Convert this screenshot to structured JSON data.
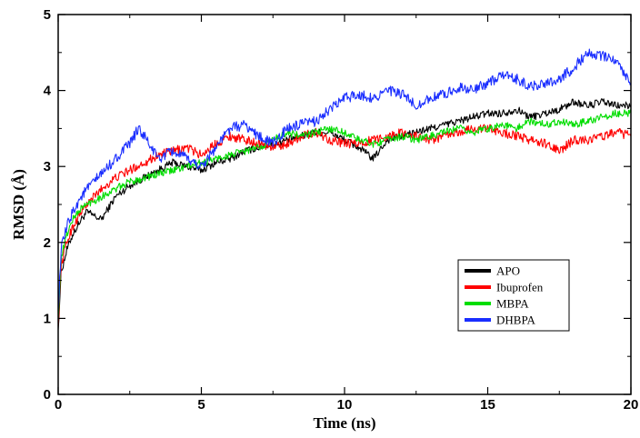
{
  "chart_data": {
    "type": "line",
    "title": "",
    "xlabel": "Time (ns)",
    "ylabel": "RMSD (Å)",
    "xlim": [
      0,
      20
    ],
    "ylim": [
      0,
      5
    ],
    "x_ticks": [
      "0",
      "5",
      "10",
      "15",
      "20"
    ],
    "y_ticks": [
      "0",
      "1",
      "2",
      "3",
      "4",
      "5"
    ],
    "grid": false,
    "legend_position": "bottom-right",
    "series": [
      {
        "name": "APO",
        "color": "#000000",
        "noise": 0.05,
        "points": [
          [
            0,
            0.85
          ],
          [
            0.1,
            1.6
          ],
          [
            0.3,
            1.9
          ],
          [
            0.5,
            2.1
          ],
          [
            0.8,
            2.3
          ],
          [
            1.0,
            2.4
          ],
          [
            1.5,
            2.3
          ],
          [
            2.0,
            2.6
          ],
          [
            2.5,
            2.75
          ],
          [
            3.0,
            2.85
          ],
          [
            3.5,
            2.95
          ],
          [
            4.0,
            3.05
          ],
          [
            4.5,
            3.0
          ],
          [
            5.0,
            2.95
          ],
          [
            5.5,
            3.05
          ],
          [
            6.0,
            3.1
          ],
          [
            6.5,
            3.2
          ],
          [
            7.0,
            3.25
          ],
          [
            7.5,
            3.3
          ],
          [
            8.0,
            3.35
          ],
          [
            8.5,
            3.4
          ],
          [
            9.0,
            3.45
          ],
          [
            9.5,
            3.45
          ],
          [
            10.0,
            3.35
          ],
          [
            10.5,
            3.25
          ],
          [
            11.0,
            3.1
          ],
          [
            11.5,
            3.35
          ],
          [
            12.0,
            3.4
          ],
          [
            12.5,
            3.45
          ],
          [
            13.0,
            3.5
          ],
          [
            13.5,
            3.55
          ],
          [
            14.0,
            3.6
          ],
          [
            14.5,
            3.65
          ],
          [
            15.0,
            3.7
          ],
          [
            15.5,
            3.7
          ],
          [
            16.0,
            3.75
          ],
          [
            16.5,
            3.65
          ],
          [
            17.0,
            3.7
          ],
          [
            17.5,
            3.75
          ],
          [
            18.0,
            3.85
          ],
          [
            18.5,
            3.8
          ],
          [
            19.0,
            3.85
          ],
          [
            19.5,
            3.8
          ],
          [
            20.0,
            3.8
          ]
        ]
      },
      {
        "name": "Ibuprofen",
        "color": "#ff0000",
        "noise": 0.06,
        "points": [
          [
            0,
            0.9
          ],
          [
            0.1,
            1.7
          ],
          [
            0.3,
            2.0
          ],
          [
            0.5,
            2.2
          ],
          [
            0.8,
            2.4
          ],
          [
            1.0,
            2.5
          ],
          [
            1.5,
            2.7
          ],
          [
            2.0,
            2.85
          ],
          [
            2.5,
            2.95
          ],
          [
            3.0,
            3.05
          ],
          [
            3.5,
            3.15
          ],
          [
            4.0,
            3.2
          ],
          [
            4.5,
            3.25
          ],
          [
            5.0,
            3.15
          ],
          [
            5.5,
            3.3
          ],
          [
            6.0,
            3.4
          ],
          [
            6.5,
            3.35
          ],
          [
            7.0,
            3.3
          ],
          [
            7.5,
            3.25
          ],
          [
            8.0,
            3.3
          ],
          [
            8.5,
            3.4
          ],
          [
            9.0,
            3.45
          ],
          [
            9.5,
            3.35
          ],
          [
            10.0,
            3.3
          ],
          [
            10.5,
            3.3
          ],
          [
            11.0,
            3.35
          ],
          [
            11.5,
            3.4
          ],
          [
            12.0,
            3.45
          ],
          [
            12.5,
            3.4
          ],
          [
            13.0,
            3.35
          ],
          [
            13.5,
            3.4
          ],
          [
            14.0,
            3.45
          ],
          [
            14.5,
            3.5
          ],
          [
            15.0,
            3.5
          ],
          [
            15.5,
            3.45
          ],
          [
            16.0,
            3.4
          ],
          [
            16.5,
            3.35
          ],
          [
            17.0,
            3.3
          ],
          [
            17.5,
            3.2
          ],
          [
            18.0,
            3.35
          ],
          [
            18.5,
            3.35
          ],
          [
            19.0,
            3.4
          ],
          [
            19.5,
            3.45
          ],
          [
            20.0,
            3.4
          ]
        ]
      },
      {
        "name": "MBPA",
        "color": "#00dd00",
        "noise": 0.05,
        "points": [
          [
            0,
            1.0
          ],
          [
            0.1,
            1.8
          ],
          [
            0.3,
            2.1
          ],
          [
            0.5,
            2.3
          ],
          [
            0.8,
            2.45
          ],
          [
            1.0,
            2.5
          ],
          [
            1.5,
            2.6
          ],
          [
            2.0,
            2.7
          ],
          [
            2.5,
            2.8
          ],
          [
            3.0,
            2.85
          ],
          [
            3.5,
            2.9
          ],
          [
            4.0,
            2.95
          ],
          [
            4.5,
            3.0
          ],
          [
            5.0,
            3.05
          ],
          [
            5.5,
            3.1
          ],
          [
            6.0,
            3.15
          ],
          [
            6.5,
            3.2
          ],
          [
            7.0,
            3.25
          ],
          [
            7.5,
            3.35
          ],
          [
            8.0,
            3.45
          ],
          [
            8.5,
            3.4
          ],
          [
            9.0,
            3.45
          ],
          [
            9.5,
            3.5
          ],
          [
            10.0,
            3.45
          ],
          [
            10.5,
            3.35
          ],
          [
            11.0,
            3.3
          ],
          [
            11.5,
            3.35
          ],
          [
            12.0,
            3.4
          ],
          [
            12.5,
            3.35
          ],
          [
            13.0,
            3.4
          ],
          [
            13.5,
            3.45
          ],
          [
            14.0,
            3.5
          ],
          [
            14.5,
            3.45
          ],
          [
            15.0,
            3.5
          ],
          [
            15.5,
            3.55
          ],
          [
            16.0,
            3.5
          ],
          [
            16.5,
            3.6
          ],
          [
            17.0,
            3.55
          ],
          [
            17.5,
            3.6
          ],
          [
            18.0,
            3.55
          ],
          [
            18.5,
            3.6
          ],
          [
            19.0,
            3.65
          ],
          [
            19.5,
            3.7
          ],
          [
            20.0,
            3.7
          ]
        ]
      },
      {
        "name": "DHBPA",
        "color": "#1a2eff",
        "noise": 0.07,
        "points": [
          [
            0,
            1.1
          ],
          [
            0.1,
            1.9
          ],
          [
            0.3,
            2.2
          ],
          [
            0.5,
            2.4
          ],
          [
            0.8,
            2.6
          ],
          [
            1.0,
            2.7
          ],
          [
            1.5,
            2.9
          ],
          [
            2.0,
            3.1
          ],
          [
            2.5,
            3.3
          ],
          [
            2.8,
            3.5
          ],
          [
            3.0,
            3.4
          ],
          [
            3.5,
            3.1
          ],
          [
            4.0,
            3.2
          ],
          [
            4.5,
            3.1
          ],
          [
            5.0,
            3.0
          ],
          [
            5.5,
            3.25
          ],
          [
            6.0,
            3.5
          ],
          [
            6.5,
            3.55
          ],
          [
            7.0,
            3.4
          ],
          [
            7.5,
            3.3
          ],
          [
            8.0,
            3.5
          ],
          [
            8.5,
            3.55
          ],
          [
            9.0,
            3.6
          ],
          [
            9.5,
            3.75
          ],
          [
            10.0,
            3.9
          ],
          [
            10.5,
            3.95
          ],
          [
            11.0,
            3.9
          ],
          [
            11.5,
            4.0
          ],
          [
            12.0,
            3.95
          ],
          [
            12.5,
            3.8
          ],
          [
            13.0,
            3.9
          ],
          [
            13.5,
            3.95
          ],
          [
            14.0,
            4.05
          ],
          [
            14.5,
            4.0
          ],
          [
            15.0,
            4.1
          ],
          [
            15.5,
            4.2
          ],
          [
            16.0,
            4.15
          ],
          [
            16.5,
            4.05
          ],
          [
            17.0,
            4.1
          ],
          [
            17.5,
            4.15
          ],
          [
            18.0,
            4.3
          ],
          [
            18.5,
            4.5
          ],
          [
            19.0,
            4.45
          ],
          [
            19.5,
            4.4
          ],
          [
            20.0,
            4.1
          ]
        ]
      }
    ]
  }
}
